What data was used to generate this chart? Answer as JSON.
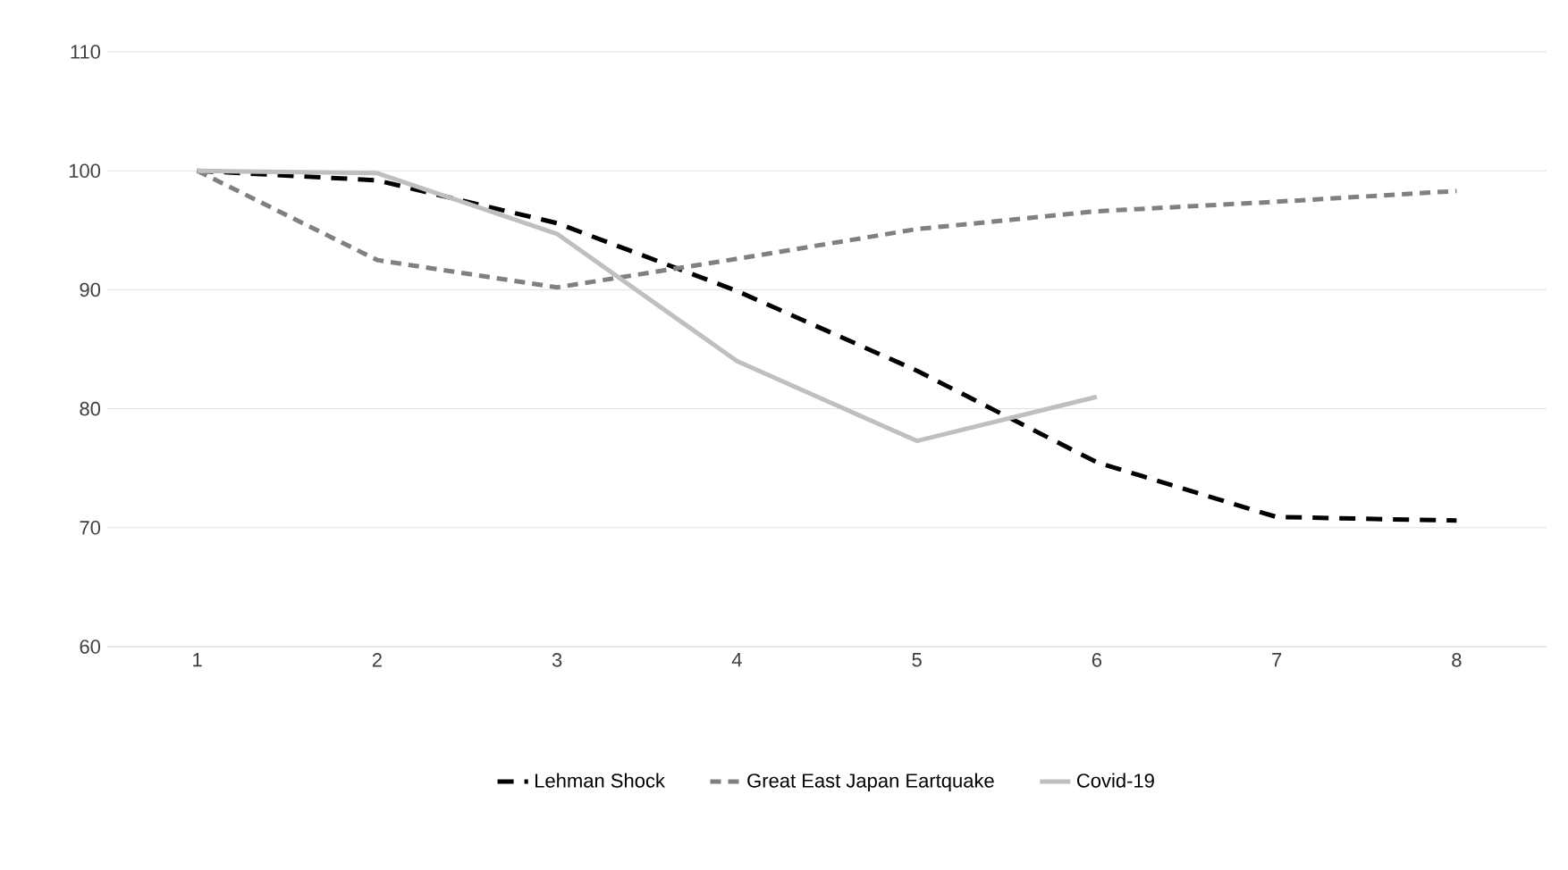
{
  "chart_data": {
    "type": "line",
    "categories": [
      "1",
      "2",
      "3",
      "4",
      "5",
      "6",
      "7",
      "8"
    ],
    "series": [
      {
        "name": "Lehman Shock",
        "color": "#000000",
        "line_style": "dashed",
        "values": [
          100,
          99.2,
          95.6,
          89.9,
          83.2,
          75.5,
          70.9,
          70.6
        ]
      },
      {
        "name": "Great East Japan Eartquake",
        "color": "#808080",
        "line_style": "dashed",
        "values": [
          100,
          92.5,
          90.2,
          92.6,
          95.1,
          96.6,
          97.4,
          98.3
        ]
      },
      {
        "name": "Covid-19",
        "color": "#bfbfbf",
        "line_style": "solid",
        "values": [
          100,
          99.8,
          94.7,
          84.0,
          77.3,
          81.0,
          null,
          null
        ]
      }
    ],
    "ylim": [
      60,
      110
    ],
    "yticks": [
      60,
      70,
      80,
      90,
      100,
      110
    ],
    "grid": "y",
    "legend": "bottom"
  }
}
